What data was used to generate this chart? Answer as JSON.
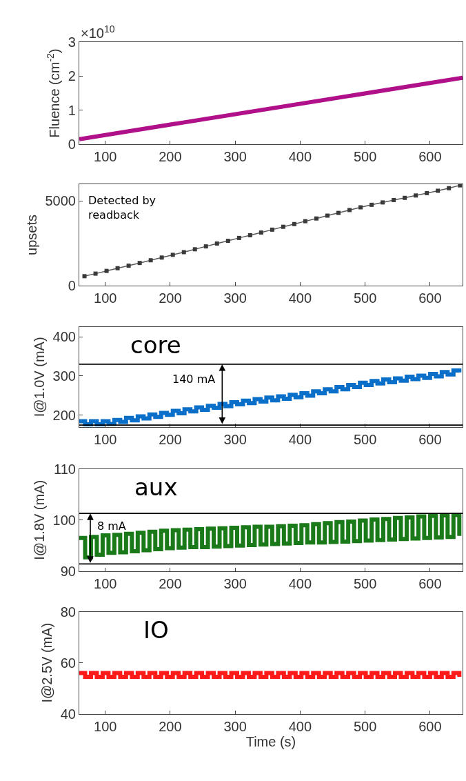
{
  "chart_data": [
    {
      "type": "line",
      "ylabel": "Fluence (cm$^{-2}$)",
      "x": [
        60,
        650
      ],
      "values": [
        0.15,
        1.95
      ],
      "color": "#b0108a",
      "xlim": [
        60,
        650
      ],
      "xticks": [
        100,
        200,
        300,
        400,
        500,
        600
      ],
      "ylim": [
        0,
        3
      ],
      "yticks": [
        0,
        1,
        2,
        3
      ],
      "annotations": [
        "×10$^{10}$"
      ]
    },
    {
      "type": "line",
      "ylabel": "upsets",
      "marker": "square",
      "color": "#5a5a5a",
      "x": [
        68,
        85,
        102,
        119,
        136,
        153,
        170,
        187,
        204,
        221,
        238,
        255,
        272,
        289,
        306,
        323,
        340,
        357,
        374,
        391,
        408,
        425,
        442,
        459,
        476,
        493,
        510,
        527,
        544,
        561,
        578,
        595,
        612,
        629,
        646
      ],
      "values": [
        560,
        710,
        870,
        1030,
        1180,
        1340,
        1500,
        1660,
        1820,
        1980,
        2150,
        2320,
        2490,
        2650,
        2820,
        2980,
        3140,
        3310,
        3480,
        3640,
        3810,
        3970,
        4140,
        4300,
        4470,
        4630,
        4780,
        4920,
        5060,
        5190,
        5330,
        5470,
        5610,
        5760,
        5930
      ],
      "xlim": [
        60,
        650
      ],
      "xticks": [
        100,
        200,
        300,
        400,
        500,
        600
      ],
      "ylim": [
        0,
        6000
      ],
      "yticks": [
        0,
        5000
      ],
      "annotations": [
        "Detected by\nreadback"
      ]
    },
    {
      "type": "step",
      "title": "core",
      "ylabel": "I@1.0V (mA)",
      "color": "#0a6fc8",
      "x": [
        60,
        69,
        78,
        87,
        96,
        105,
        114,
        123,
        132,
        141,
        150,
        159,
        168,
        177,
        186,
        195,
        204,
        213,
        222,
        231,
        240,
        249,
        258,
        267,
        276,
        285,
        294,
        303,
        312,
        321,
        330,
        339,
        348,
        357,
        366,
        375,
        384,
        393,
        402,
        411,
        420,
        429,
        438,
        447,
        456,
        465,
        474,
        483,
        492,
        501,
        510,
        519,
        528,
        537,
        546,
        555,
        564,
        573,
        582,
        591,
        600,
        609,
        618,
        627,
        636,
        645
      ],
      "values": [
        185,
        177,
        185,
        177,
        185,
        178,
        188,
        183,
        193,
        187,
        197,
        192,
        202,
        196,
        206,
        201,
        211,
        205,
        215,
        210,
        220,
        214,
        224,
        219,
        229,
        223,
        233,
        228,
        237,
        231,
        241,
        235,
        245,
        238,
        248,
        242,
        252,
        246,
        256,
        250,
        261,
        256,
        266,
        261,
        272,
        266,
        277,
        272,
        283,
        277,
        287,
        281,
        291,
        284,
        294,
        288,
        298,
        292,
        301,
        295,
        305,
        299,
        310,
        304,
        314,
        309
      ],
      "xlim": [
        60,
        650
      ],
      "xticks": [
        100,
        200,
        300,
        400,
        500,
        600
      ],
      "ylim": [
        170,
        425
      ],
      "yticks": [
        200,
        300,
        400
      ],
      "ref_lines": [
        {
          "axis": "y",
          "value": 330,
          "color": "#000000"
        },
        {
          "axis": "y",
          "value": 175,
          "color": "#000000"
        }
      ],
      "annotations": [
        {
          "text": "140 mA",
          "x": 280,
          "y": 330
        }
      ]
    },
    {
      "type": "step",
      "title": "aux",
      "ylabel": "I@1.8V (mA)",
      "color": "#1a7a1a",
      "x": [
        60,
        69,
        78,
        87,
        96,
        105,
        114,
        123,
        132,
        141,
        150,
        159,
        168,
        177,
        186,
        195,
        204,
        213,
        222,
        231,
        240,
        249,
        258,
        267,
        276,
        285,
        294,
        303,
        312,
        321,
        330,
        339,
        348,
        357,
        366,
        375,
        384,
        393,
        402,
        411,
        420,
        429,
        438,
        447,
        456,
        465,
        474,
        483,
        492,
        501,
        510,
        519,
        528,
        537,
        546,
        555,
        564,
        573,
        582,
        591,
        600,
        609,
        618,
        627,
        636,
        645
      ],
      "values": [
        96.5,
        92.7,
        96.7,
        93.2,
        97.0,
        93.6,
        97.1,
        93.7,
        97.3,
        93.9,
        97.5,
        94.1,
        97.7,
        94.3,
        97.9,
        94.5,
        98.0,
        94.6,
        98.1,
        94.7,
        98.2,
        94.7,
        98.3,
        94.8,
        98.4,
        94.9,
        98.5,
        95.0,
        98.6,
        95.1,
        98.7,
        95.2,
        98.7,
        95.3,
        98.8,
        95.4,
        98.9,
        95.5,
        99.0,
        95.6,
        99.2,
        95.6,
        99.4,
        95.7,
        99.6,
        95.8,
        99.7,
        95.9,
        99.9,
        96.0,
        100.1,
        96.1,
        100.2,
        96.2,
        100.4,
        96.3,
        100.5,
        96.4,
        100.7,
        96.5,
        100.8,
        96.6,
        100.9,
        96.7,
        101.0,
        96.9
      ],
      "xlim": [
        60,
        650
      ],
      "xticks": [
        100,
        200,
        300,
        400,
        500,
        600
      ],
      "ylim": [
        90,
        110
      ],
      "yticks": [
        90,
        100,
        110
      ],
      "ref_lines": [
        {
          "axis": "y",
          "value": 101.3,
          "color": "#000000"
        },
        {
          "axis": "y",
          "value": 91.4,
          "color": "#000000"
        }
      ],
      "annotations": [
        {
          "text": "8 mA",
          "x": 77,
          "y": 101.3
        }
      ]
    },
    {
      "type": "step",
      "title": "IO",
      "ylabel": "I@2.5V (mA)",
      "xlabel": "Time (s)",
      "color": "#ff1a1a",
      "x": [
        60,
        69,
        78,
        87,
        96,
        105,
        114,
        123,
        132,
        141,
        150,
        159,
        168,
        177,
        186,
        195,
        204,
        213,
        222,
        231,
        240,
        249,
        258,
        267,
        276,
        285,
        294,
        303,
        312,
        321,
        330,
        339,
        348,
        357,
        366,
        375,
        384,
        393,
        402,
        411,
        420,
        429,
        438,
        447,
        456,
        465,
        474,
        483,
        492,
        501,
        510,
        519,
        528,
        537,
        546,
        555,
        564,
        573,
        582,
        591,
        600,
        609,
        618,
        627,
        636,
        645
      ],
      "values": [
        56,
        54.5,
        56,
        54.5,
        56,
        54.5,
        56,
        54.5,
        56,
        54.5,
        56,
        54.5,
        56,
        54.5,
        56,
        54.5,
        56,
        54.5,
        56,
        54.5,
        56,
        54.5,
        56,
        54.5,
        56,
        54.5,
        56,
        54.5,
        56,
        54.5,
        56,
        54.5,
        56,
        54.5,
        56,
        54.5,
        56,
        54.5,
        56,
        54.5,
        56,
        54.5,
        56,
        54.5,
        56,
        54.5,
        56,
        54.5,
        56,
        54.5,
        56,
        54.5,
        56,
        54.5,
        56,
        54.5,
        56,
        54.5,
        56,
        54.5,
        56,
        54.5,
        56,
        54.5,
        56,
        54.5
      ],
      "xlim": [
        60,
        650
      ],
      "xticks": [
        100,
        200,
        300,
        400,
        500,
        600
      ],
      "ylim": [
        40,
        80
      ],
      "yticks": [
        40,
        60,
        80
      ]
    }
  ]
}
